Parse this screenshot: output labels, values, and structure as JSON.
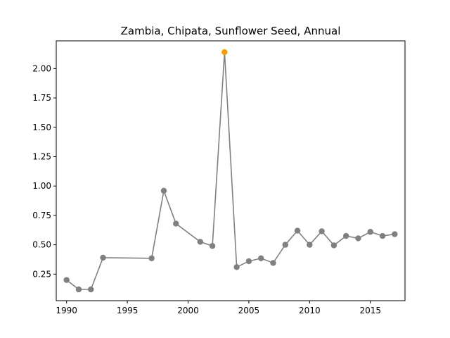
{
  "chart_data": {
    "type": "line",
    "title": "Zambia, Chipata, Sunflower Seed, Annual",
    "xlabel": "",
    "ylabel": "",
    "xlim": [
      1989.15,
      2017.85
    ],
    "ylim": [
      0.024,
      2.236
    ],
    "grid": false,
    "xticks": [
      1990,
      1995,
      2000,
      2005,
      2010,
      2015
    ],
    "yticks": [
      0.25,
      0.5,
      0.75,
      1.0,
      1.25,
      1.5,
      1.75,
      2.0
    ],
    "ytick_labels": [
      "0.25",
      "0.50",
      "0.75",
      "1.00",
      "1.25",
      "1.50",
      "1.75",
      "2.00"
    ],
    "series": [
      {
        "color": "#808080",
        "marker": "circle",
        "x": [
          1990,
          1991,
          1992,
          1993,
          1997,
          1998,
          1999,
          2001,
          2002,
          2003,
          2004,
          2005,
          2006,
          2007,
          2008,
          2009,
          2010,
          2011,
          2012,
          2013,
          2014,
          2015,
          2016,
          2017
        ],
        "y": [
          0.2,
          0.12,
          0.12,
          0.39,
          0.385,
          0.96,
          0.68,
          0.525,
          0.49,
          2.14,
          0.31,
          0.36,
          0.385,
          0.345,
          0.5,
          0.62,
          0.5,
          0.615,
          0.495,
          0.575,
          0.555,
          0.61,
          0.575,
          0.59
        ]
      }
    ],
    "highlight": {
      "x": 2003,
      "y": 2.14,
      "color": "#f5a000"
    }
  }
}
